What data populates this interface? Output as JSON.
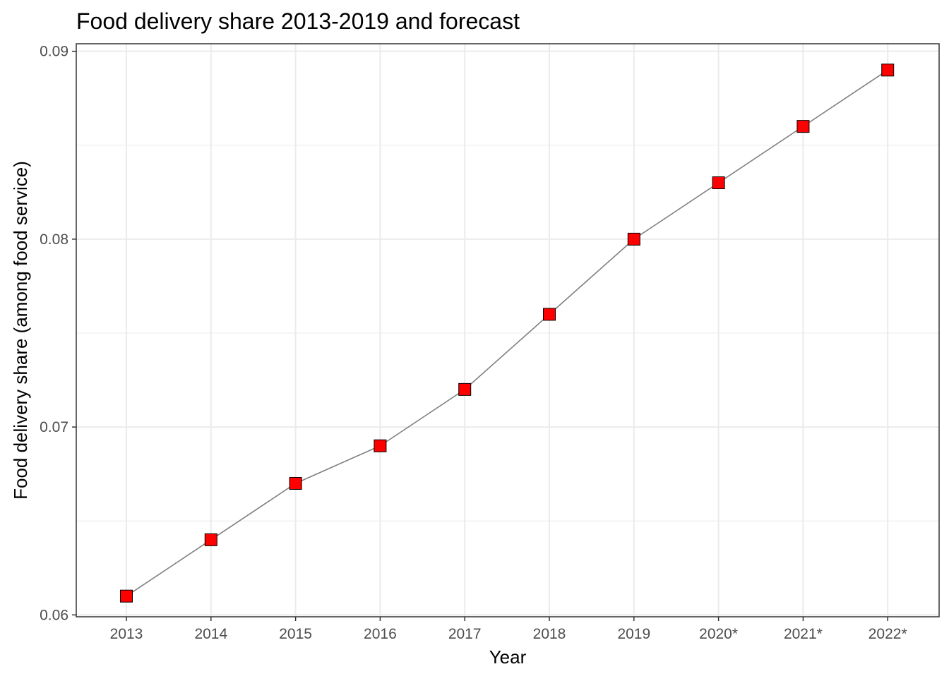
{
  "chart_data": {
    "type": "line",
    "title": "Food delivery share 2013-2019 and forecast",
    "xlabel": "Year",
    "ylabel": "Food delivery share (among food service)",
    "categories": [
      "2013",
      "2014",
      "2015",
      "2016",
      "2017",
      "2018",
      "2019",
      "2020*",
      "2021*",
      "2022*"
    ],
    "series": [
      {
        "values": [
          0.061,
          0.064,
          0.067,
          0.069,
          0.072,
          0.076,
          0.08,
          0.083,
          0.086,
          0.089
        ]
      }
    ],
    "y_ticks": [
      "0.06",
      "0.07",
      "0.08",
      "0.09"
    ],
    "ylim": [
      0.0599,
      0.0904
    ],
    "grid": true,
    "legend": "none",
    "colors": {
      "marker_fill": "#ff0000",
      "marker_stroke": "#000000",
      "line": "#7f7f7f",
      "grid": "#ebebeb",
      "panel_border": "#333333"
    }
  }
}
